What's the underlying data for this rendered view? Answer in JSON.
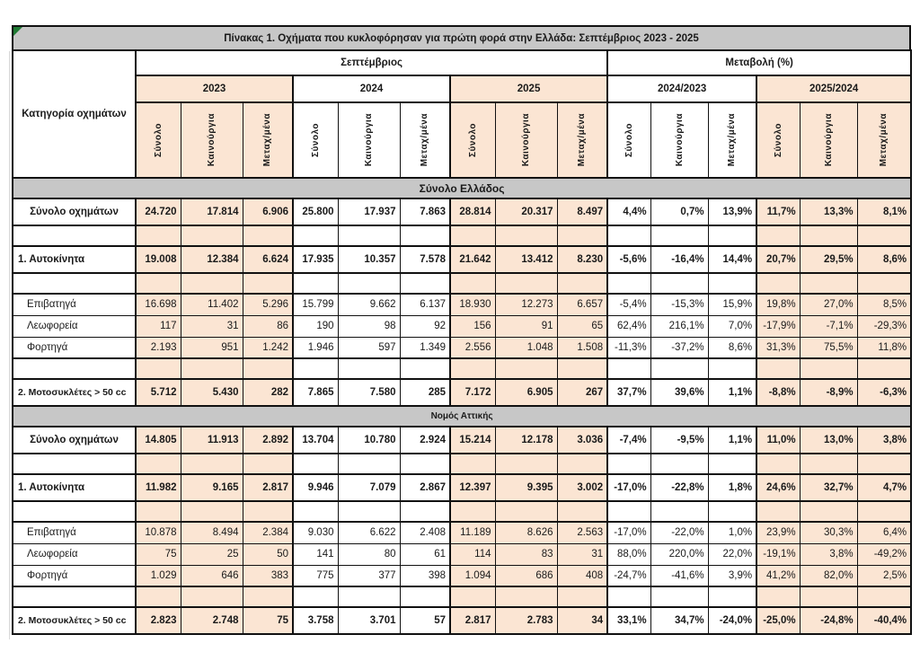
{
  "title": "Πίνακας 1. Οχήματα που κυκλοφόρησαν για πρώτη φορά στην Ελλάδα: Σεπτέμβριος 2023 - 2025",
  "colors": {
    "cell_peach": "#fbe5d3",
    "band_gray": "#c7c7c7",
    "border_black": "#111111",
    "corner_marker_green": "#1f7a33"
  },
  "header": {
    "category_label": "Κατηγορία οχημάτων",
    "september_label": "Σεπτέμβριος",
    "change_label": "Μεταβολή (%)",
    "years": [
      "2023",
      "2024",
      "2025"
    ],
    "change_periods": [
      "2024/2023",
      "2025/2024"
    ],
    "sub_cols": [
      "Σύνολο",
      "Καινούργια",
      "Μεταχ/μένα"
    ]
  },
  "table": {
    "sections": [
      {
        "name": "Σύνολο Ελλάδος",
        "rows": [
          {
            "label": "Σύνολο οχημάτων",
            "type": "total",
            "values": [
              "24.720",
              "17.814",
              "6.906",
              "25.800",
              "17.937",
              "7.863",
              "28.814",
              "20.317",
              "8.497",
              "4,4%",
              "0,7%",
              "13,9%",
              "11,7%",
              "13,3%",
              "8,1%"
            ]
          },
          {
            "label": "",
            "type": "blank",
            "values": [
              "",
              "",
              "",
              "",
              "",
              "",
              "",
              "",
              "",
              "",
              "",
              "",
              "",
              "",
              ""
            ]
          },
          {
            "label": "1. Αυτοκίνητα",
            "type": "main",
            "values": [
              "19.008",
              "12.384",
              "6.624",
              "17.935",
              "10.357",
              "7.578",
              "21.642",
              "13.412",
              "8.230",
              "-5,6%",
              "-16,4%",
              "14,4%",
              "20,7%",
              "29,5%",
              "8,6%"
            ]
          },
          {
            "label": "",
            "type": "blank",
            "values": [
              "",
              "",
              "",
              "",
              "",
              "",
              "",
              "",
              "",
              "",
              "",
              "",
              "",
              "",
              ""
            ]
          },
          {
            "label": "Επιβατηγά",
            "type": "sub",
            "values": [
              "16.698",
              "11.402",
              "5.296",
              "15.799",
              "9.662",
              "6.137",
              "18.930",
              "12.273",
              "6.657",
              "-5,4%",
              "-15,3%",
              "15,9%",
              "19,8%",
              "27,0%",
              "8,5%"
            ]
          },
          {
            "label": "Λεωφορεία",
            "type": "sub",
            "values": [
              "117",
              "31",
              "86",
              "190",
              "98",
              "92",
              "156",
              "91",
              "65",
              "62,4%",
              "216,1%",
              "7,0%",
              "-17,9%",
              "-7,1%",
              "-29,3%"
            ]
          },
          {
            "label": "Φορτηγά",
            "type": "sub",
            "values": [
              "2.193",
              "951",
              "1.242",
              "1.946",
              "597",
              "1.349",
              "2.556",
              "1.048",
              "1.508",
              "-11,3%",
              "-37,2%",
              "8,6%",
              "31,3%",
              "75,5%",
              "11,8%"
            ]
          },
          {
            "label": "",
            "type": "blank",
            "values": [
              "",
              "",
              "",
              "",
              "",
              "",
              "",
              "",
              "",
              "",
              "",
              "",
              "",
              "",
              ""
            ]
          },
          {
            "label": "2. Μοτοσυκλέτες > 50 cc",
            "type": "main",
            "values": [
              "5.712",
              "5.430",
              "282",
              "7.865",
              "7.580",
              "285",
              "7.172",
              "6.905",
              "267",
              "37,7%",
              "39,6%",
              "1,1%",
              "-8,8%",
              "-8,9%",
              "-6,3%"
            ]
          }
        ]
      },
      {
        "name": "Νομός Αττικής",
        "rows": [
          {
            "label": "Σύνολο οχημάτων",
            "type": "total",
            "values": [
              "14.805",
              "11.913",
              "2.892",
              "13.704",
              "10.780",
              "2.924",
              "15.214",
              "12.178",
              "3.036",
              "-7,4%",
              "-9,5%",
              "1,1%",
              "11,0%",
              "13,0%",
              "3,8%"
            ]
          },
          {
            "label": "",
            "type": "blank",
            "values": [
              "",
              "",
              "",
              "",
              "",
              "",
              "",
              "",
              "",
              "",
              "",
              "",
              "",
              "",
              ""
            ]
          },
          {
            "label": "1. Αυτοκίνητα",
            "type": "main",
            "values": [
              "11.982",
              "9.165",
              "2.817",
              "9.946",
              "7.079",
              "2.867",
              "12.397",
              "9.395",
              "3.002",
              "-17,0%",
              "-22,8%",
              "1,8%",
              "24,6%",
              "32,7%",
              "4,7%"
            ]
          },
          {
            "label": "",
            "type": "blank",
            "values": [
              "",
              "",
              "",
              "",
              "",
              "",
              "",
              "",
              "",
              "",
              "",
              "",
              "",
              "",
              ""
            ]
          },
          {
            "label": "Επιβατηγά",
            "type": "sub",
            "values": [
              "10.878",
              "8.494",
              "2.384",
              "9.030",
              "6.622",
              "2.408",
              "11.189",
              "8.626",
              "2.563",
              "-17,0%",
              "-22,0%",
              "1,0%",
              "23,9%",
              "30,3%",
              "6,4%"
            ]
          },
          {
            "label": "Λεωφορεία",
            "type": "sub",
            "values": [
              "75",
              "25",
              "50",
              "141",
              "80",
              "61",
              "114",
              "83",
              "31",
              "88,0%",
              "220,0%",
              "22,0%",
              "-19,1%",
              "3,8%",
              "-49,2%"
            ]
          },
          {
            "label": "Φορτηγά",
            "type": "sub",
            "values": [
              "1.029",
              "646",
              "383",
              "775",
              "377",
              "398",
              "1.094",
              "686",
              "408",
              "-24,7%",
              "-41,6%",
              "3,9%",
              "41,2%",
              "82,0%",
              "2,5%"
            ]
          },
          {
            "label": "",
            "type": "blank",
            "values": [
              "",
              "",
              "",
              "",
              "",
              "",
              "",
              "",
              "",
              "",
              "",
              "",
              "",
              "",
              ""
            ]
          },
          {
            "label": "2. Μοτοσυκλέτες > 50 cc",
            "type": "main",
            "values": [
              "2.823",
              "2.748",
              "75",
              "3.758",
              "3.701",
              "57",
              "2.817",
              "2.783",
              "34",
              "33,1%",
              "34,7%",
              "-24,0%",
              "-25,0%",
              "-24,8%",
              "-40,4%"
            ]
          }
        ]
      }
    ]
  }
}
